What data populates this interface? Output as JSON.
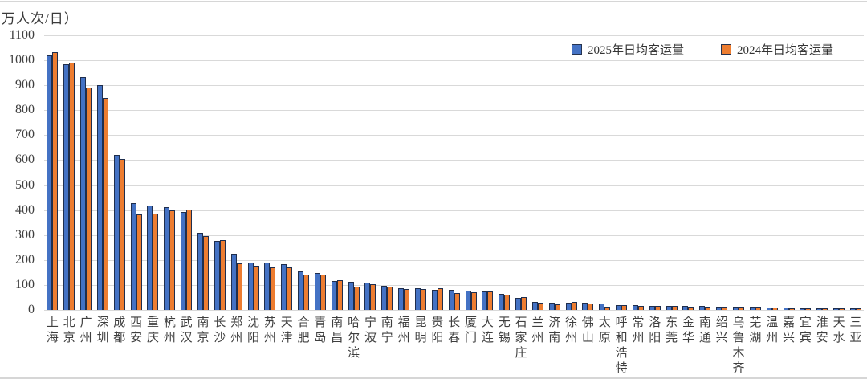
{
  "unit_label": "万人次/日）",
  "legend": {
    "items": [
      {
        "label": "2025年日均客运量",
        "color": "#4472C4"
      },
      {
        "label": "2024年日均客运量",
        "color": "#ED7D31"
      }
    ]
  },
  "chart_data": {
    "type": "bar",
    "title": "",
    "xlabel": "",
    "ylabel": "万人次/日）",
    "ylim": [
      0,
      1100
    ],
    "ytick_step": 100,
    "grid": true,
    "legend_position": "top-right",
    "bar_fill_colors": [
      "#4472C4",
      "#ED7D31"
    ],
    "bar_outline_color": "#1F2E4D",
    "categories": [
      "上海",
      "北京",
      "广州",
      "深圳",
      "成都",
      "西安",
      "重庆",
      "杭州",
      "武汉",
      "南京",
      "长沙",
      "郑州",
      "沈阳",
      "苏州",
      "天津",
      "合肥",
      "青岛",
      "南昌",
      "哈尔滨",
      "宁波",
      "南宁",
      "福州",
      "昆明",
      "贵阳",
      "长春",
      "厦门",
      "大连",
      "无锡",
      "石家庄",
      "兰州",
      "济南",
      "徐州",
      "佛山",
      "太原",
      "呼和浩特",
      "常州",
      "洛阳",
      "东莞",
      "金华",
      "南通",
      "绍兴",
      "乌鲁木齐",
      "芜湖",
      "温州",
      "嘉兴",
      "宜宾",
      "淮安",
      "天水",
      "三亚"
    ],
    "series": [
      {
        "name": "2025年日均客运量",
        "color": "#4472C4",
        "values": [
          1020,
          984,
          934,
          901,
          620,
          428,
          417,
          412,
          394,
          308,
          276,
          225,
          190,
          189,
          183,
          153,
          148,
          115,
          113,
          109,
          98,
          88,
          87,
          82,
          80,
          76,
          74,
          63,
          49,
          33,
          30,
          29,
          28,
          27,
          19,
          18,
          16,
          16,
          15,
          15,
          14,
          13,
          13,
          11,
          9,
          8,
          8,
          6,
          5
        ]
      },
      {
        "name": "2024年日均客运量",
        "color": "#ED7D31",
        "values": [
          1033,
          991,
          890,
          849,
          604,
          384,
          386,
          400,
          401,
          296,
          280,
          188,
          177,
          172,
          172,
          140,
          141,
          119,
          93,
          102,
          93,
          84,
          84,
          86,
          66,
          72,
          73,
          62,
          52,
          29,
          24,
          32,
          26,
          13,
          18,
          17,
          15,
          15,
          13,
          13,
          13,
          14,
          12,
          10,
          8,
          8,
          7,
          6,
          5
        ]
      }
    ]
  }
}
